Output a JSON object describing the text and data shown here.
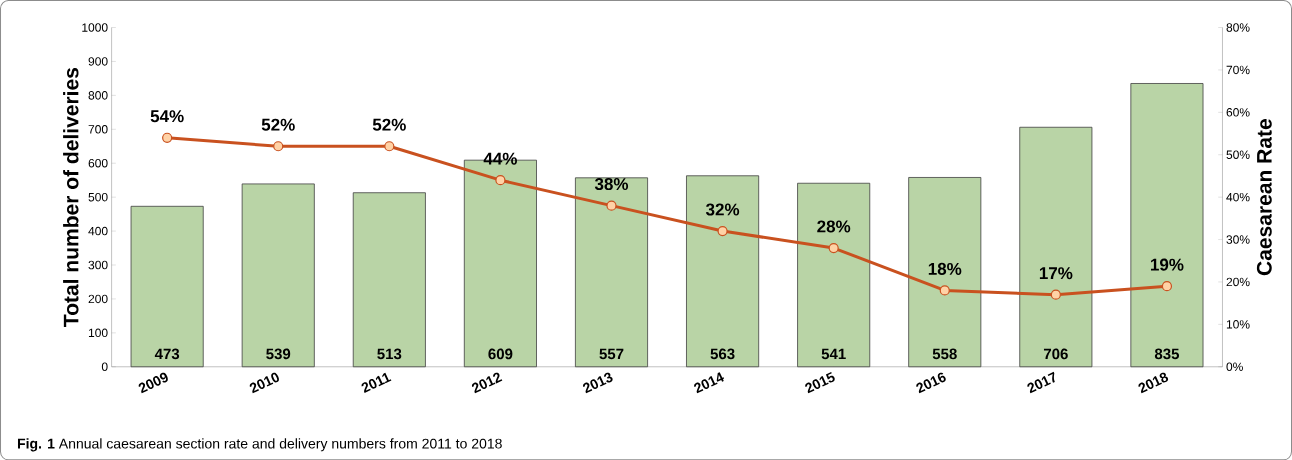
{
  "chart_data": {
    "type": "bar",
    "categories": [
      "2009",
      "2010",
      "2011",
      "2012",
      "2013",
      "2014",
      "2015",
      "2016",
      "2017",
      "2018"
    ],
    "series": [
      {
        "color": "#b9d4a6",
        "values": [
          473,
          539,
          513,
          609,
          557,
          563,
          541,
          558,
          706,
          835
        ],
        "value_labels": [
          "473",
          "539",
          "513",
          "609",
          "557",
          "563",
          "541",
          "558",
          "706",
          "835"
        ]
      },
      {
        "type": "line",
        "axis": "y2",
        "color": "#c9511f",
        "marker": "circle",
        "values": [
          54,
          52,
          52,
          44,
          38,
          32,
          28,
          18,
          17,
          19
        ],
        "value_labels": [
          "54%",
          "52%",
          "52%",
          "44%",
          "38%",
          "32%",
          "28%",
          "18%",
          "17%",
          "19%"
        ]
      }
    ],
    "ylabel": "Total number of deliveries",
    "y2label": "Caesarean Rate",
    "ylim": [
      0,
      1000
    ],
    "yticks": [
      0,
      100,
      200,
      300,
      400,
      500,
      600,
      700,
      800,
      900,
      1000
    ],
    "y2lim": [
      0,
      80
    ],
    "y2ticks": [
      {
        "value": 0,
        "label": "0%"
      },
      {
        "value": 10,
        "label": "10%"
      },
      {
        "value": 20,
        "label": "20%"
      },
      {
        "value": 30,
        "label": "30%"
      },
      {
        "value": 40,
        "label": "40%"
      },
      {
        "value": 50,
        "label": "50%"
      },
      {
        "value": 60,
        "label": "60%"
      },
      {
        "value": 70,
        "label": "70%"
      },
      {
        "value": 80,
        "label": "80%"
      }
    ],
    "grid": false,
    "annotations": [
      "**Fig. 1** Annual caesarean section rate and delivery numbers from 2011 to 2018"
    ]
  }
}
